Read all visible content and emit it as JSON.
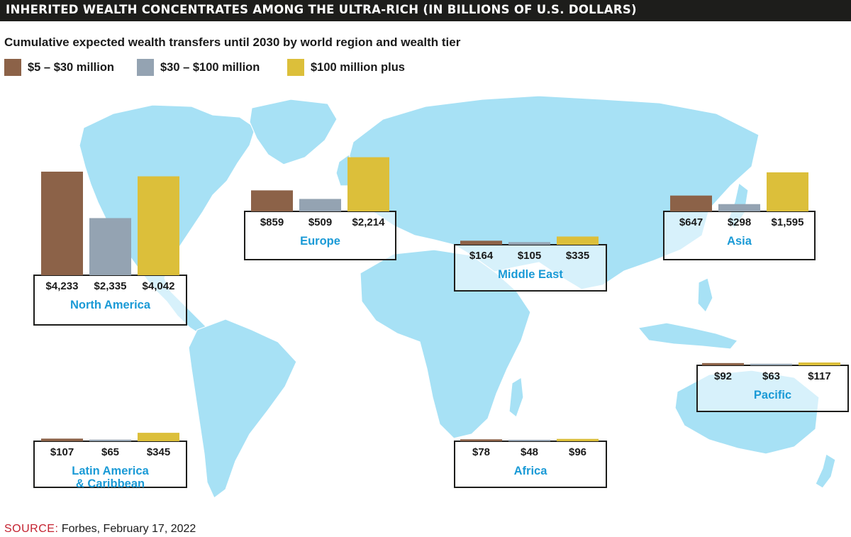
{
  "header": {
    "title": "INHERITED WEALTH CONCENTRATES AMONG THE ULTRA-RICH (IN BILLIONS OF U.S. DOLLARS)",
    "subtitle": "Cumulative expected wealth transfers until 2030 by world region and wealth tier"
  },
  "legend": {
    "placement": "top-left",
    "items": [
      {
        "label": "$5 – $30 million",
        "color": "#8c6248"
      },
      {
        "label": "$30 – $100 million",
        "color": "#94a3b2"
      },
      {
        "label": "$100 million plus",
        "color": "#dcbf3a"
      }
    ]
  },
  "colors": {
    "map_land": "#a7e1f5",
    "region_label": "#1a9ad6"
  },
  "source": {
    "label": "SOURCE:",
    "text": "Forbes, February 17, 2022"
  },
  "chart_data": {
    "type": "bar",
    "categories": [
      "$5 – $30 million",
      "$30 – $100 million",
      "$100 million plus"
    ],
    "regions": [
      {
        "name": "North America",
        "values": [
          4233,
          2335,
          4042
        ],
        "labels": [
          "$4,233",
          "$2,335",
          "$4,042"
        ]
      },
      {
        "name": "Europe",
        "values": [
          859,
          509,
          2214
        ],
        "labels": [
          "$859",
          "$509",
          "$2,214"
        ]
      },
      {
        "name": "Middle East",
        "values": [
          164,
          105,
          335
        ],
        "labels": [
          "$164",
          "$105",
          "$335"
        ]
      },
      {
        "name": "Asia",
        "values": [
          647,
          298,
          1595
        ],
        "labels": [
          "$647",
          "$298",
          "$1,595"
        ]
      },
      {
        "name": "Pacific",
        "values": [
          92,
          63,
          117
        ],
        "labels": [
          "$92",
          "$63",
          "$117"
        ]
      },
      {
        "name": "Latin America & Caribbean",
        "name_lines": [
          "Latin America",
          "& Caribbean"
        ],
        "values": [
          107,
          65,
          345
        ],
        "labels": [
          "$107",
          "$65",
          "$345"
        ]
      },
      {
        "name": "Africa",
        "values": [
          78,
          48,
          96
        ],
        "labels": [
          "$78",
          "$48",
          "$96"
        ]
      }
    ]
  }
}
